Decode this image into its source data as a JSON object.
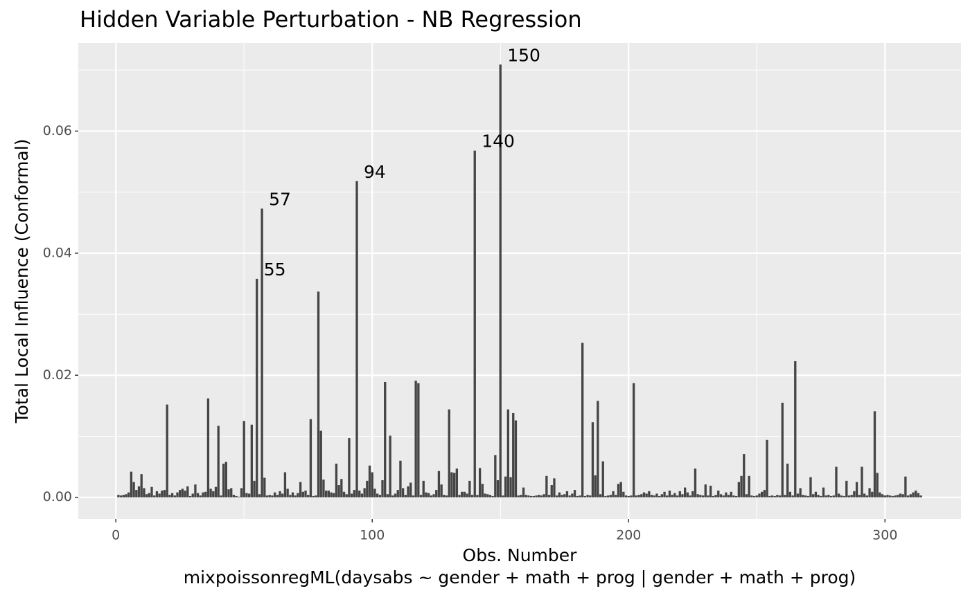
{
  "chart_data": {
    "type": "bar",
    "title": "Hidden Variable Perturbation - NB Regression",
    "xlabel": "Obs. Number",
    "caption": "mixpoissonregML(daysabs ~ gender + math + prog | gender + math + prog)",
    "ylabel": "Total Local Influence (Conformal)",
    "color": "#454545",
    "grid": true,
    "xlim": [
      -14.65,
      329.65
    ],
    "xticks": [
      0,
      100,
      200,
      300
    ],
    "xminor": [
      50,
      150,
      250
    ],
    "ylim": [
      -0.00355,
      0.07445
    ],
    "yticks": [
      {
        "value": 0,
        "label": "0.00"
      },
      {
        "value": 0.02,
        "label": "0.02"
      },
      {
        "value": 0.04,
        "label": "0.04"
      },
      {
        "value": 0.06,
        "label": "0.06"
      }
    ],
    "yminor": [
      0.01,
      0.03,
      0.05,
      0.07
    ],
    "annotations": [
      {
        "label": "55",
        "x": 55
      },
      {
        "label": "57",
        "x": 57
      },
      {
        "label": "94",
        "x": 94
      },
      {
        "label": "140",
        "x": 140
      },
      {
        "label": "150",
        "x": 150
      }
    ],
    "x": [
      1,
      2,
      3,
      4,
      5,
      6,
      7,
      8,
      9,
      10,
      11,
      12,
      13,
      14,
      15,
      16,
      17,
      18,
      19,
      20,
      21,
      22,
      23,
      24,
      25,
      26,
      27,
      28,
      29,
      30,
      31,
      32,
      33,
      34,
      35,
      36,
      37,
      38,
      39,
      40,
      41,
      42,
      43,
      44,
      45,
      46,
      47,
      48,
      49,
      50,
      51,
      52,
      53,
      54,
      55,
      56,
      57,
      58,
      59,
      60,
      61,
      62,
      63,
      64,
      65,
      66,
      67,
      68,
      69,
      70,
      71,
      72,
      73,
      74,
      75,
      76,
      77,
      78,
      79,
      80,
      81,
      82,
      83,
      84,
      85,
      86,
      87,
      88,
      89,
      90,
      91,
      92,
      93,
      94,
      95,
      96,
      97,
      98,
      99,
      100,
      101,
      102,
      103,
      104,
      105,
      106,
      107,
      108,
      109,
      110,
      111,
      112,
      113,
      114,
      115,
      116,
      117,
      118,
      119,
      120,
      121,
      122,
      123,
      124,
      125,
      126,
      127,
      128,
      129,
      130,
      131,
      132,
      133,
      134,
      135,
      136,
      137,
      138,
      139,
      140,
      141,
      142,
      143,
      144,
      145,
      146,
      147,
      148,
      149,
      150,
      151,
      152,
      153,
      154,
      155,
      156,
      157,
      158,
      159,
      160,
      161,
      162,
      163,
      164,
      165,
      166,
      167,
      168,
      169,
      170,
      171,
      172,
      173,
      174,
      175,
      176,
      177,
      178,
      179,
      180,
      181,
      182,
      183,
      184,
      185,
      186,
      187,
      188,
      189,
      190,
      191,
      192,
      193,
      194,
      195,
      196,
      197,
      198,
      199,
      200,
      201,
      202,
      203,
      204,
      205,
      206,
      207,
      208,
      209,
      210,
      211,
      212,
      213,
      214,
      215,
      216,
      217,
      218,
      219,
      220,
      221,
      222,
      223,
      224,
      225,
      226,
      227,
      228,
      229,
      230,
      231,
      232,
      233,
      234,
      235,
      236,
      237,
      238,
      239,
      240,
      241,
      242,
      243,
      244,
      245,
      246,
      247,
      248,
      249,
      250,
      251,
      252,
      253,
      254,
      255,
      256,
      257,
      258,
      259,
      260,
      261,
      262,
      263,
      264,
      265,
      266,
      267,
      268,
      269,
      270,
      271,
      272,
      273,
      274,
      275,
      276,
      277,
      278,
      279,
      280,
      281,
      282,
      283,
      284,
      285,
      286,
      287,
      288,
      289,
      290,
      291,
      292,
      293,
      294,
      295,
      296,
      297,
      298,
      299,
      300,
      301,
      302,
      303,
      304,
      305,
      306,
      307,
      308,
      309,
      310,
      311,
      312,
      313,
      314
    ],
    "values": [
      0.0004,
      0.0003,
      0.0004,
      0.0005,
      0.0008,
      0.0042,
      0.0025,
      0.0012,
      0.0018,
      0.0038,
      0.0015,
      0.0005,
      0.0007,
      0.0017,
      0.0003,
      0.001,
      0.0006,
      0.0011,
      0.0012,
      0.0152,
      0.0004,
      0.0007,
      0.0003,
      0.0008,
      0.0012,
      0.0014,
      0.0011,
      0.0018,
      0.0002,
      0.0006,
      0.0021,
      0.0007,
      0.0003,
      0.0008,
      0.0009,
      0.0162,
      0.0014,
      0.001,
      0.0017,
      0.0117,
      0.0003,
      0.0055,
      0.0058,
      0.0013,
      0.0015,
      0.0004,
      0.0002,
      0.0001,
      0.0015,
      0.0125,
      0.0007,
      0.0006,
      0.0119,
      0.0027,
      0.0358,
      0.0005,
      0.0473,
      0.0032,
      0.0003,
      0.0004,
      0.0003,
      0.0008,
      0.0004,
      0.001,
      0.0006,
      0.0041,
      0.0014,
      0.0004,
      0.0008,
      0.0003,
      0.0007,
      0.0025,
      0.0009,
      0.0011,
      0.0004,
      0.0128,
      0.0002,
      0.0003,
      0.0337,
      0.0109,
      0.0029,
      0.0011,
      0.0011,
      0.0008,
      0.0007,
      0.0055,
      0.002,
      0.003,
      0.0009,
      0.0005,
      0.0097,
      0.0006,
      0.0012,
      0.0518,
      0.0011,
      0.0006,
      0.0015,
      0.0027,
      0.0052,
      0.0041,
      0.0014,
      0.0006,
      0.0004,
      0.0028,
      0.0189,
      0.0005,
      0.0101,
      0.0003,
      0.0006,
      0.0012,
      0.006,
      0.0015,
      0.0004,
      0.0018,
      0.0024,
      0.0003,
      0.0191,
      0.0187,
      0.0004,
      0.0027,
      0.0008,
      0.0007,
      0.0003,
      0.0005,
      0.0012,
      0.0043,
      0.0021,
      0.0004,
      0.0003,
      0.0144,
      0.0041,
      0.004,
      0.0047,
      0.0004,
      0.0009,
      0.0009,
      0.0006,
      0.0027,
      0.0004,
      0.0568,
      0.0004,
      0.0048,
      0.0022,
      0.0006,
      0.0005,
      0.0004,
      0.0002,
      0.0069,
      0.0028,
      0.0709,
      0.0003,
      0.0034,
      0.0144,
      0.0033,
      0.0138,
      0.0126,
      0.0003,
      0.0004,
      0.0016,
      0.0004,
      0.0003,
      0.0002,
      0.0002,
      0.0003,
      0.0004,
      0.0003,
      0.0005,
      0.0035,
      0.0004,
      0.002,
      0.0031,
      0.0003,
      0.0008,
      0.0004,
      0.0005,
      0.001,
      0.0003,
      0.0006,
      0.0012,
      0.0002,
      0.0003,
      0.0253,
      0.0002,
      0.0004,
      0.0003,
      0.0123,
      0.0036,
      0.0158,
      0.0005,
      0.0059,
      0.0002,
      0.0003,
      0.0004,
      0.001,
      0.0004,
      0.0022,
      0.0025,
      0.0009,
      0.0003,
      0.0002,
      0.0003,
      0.0187,
      0.0003,
      0.0004,
      0.0005,
      0.0008,
      0.0006,
      0.001,
      0.0004,
      0.0003,
      0.0006,
      0.0002,
      0.0005,
      0.0009,
      0.0003,
      0.0011,
      0.0004,
      0.0007,
      0.0003,
      0.001,
      0.0005,
      0.0016,
      0.0008,
      0.0003,
      0.001,
      0.0047,
      0.0005,
      0.0004,
      0.0003,
      0.0021,
      0.0003,
      0.0019,
      0.0002,
      0.0004,
      0.0011,
      0.0005,
      0.0003,
      0.0008,
      0.0004,
      0.0009,
      0.0003,
      0.0002,
      0.0025,
      0.0035,
      0.0071,
      0.0005,
      0.0035,
      0.0003,
      0.0002,
      0.0003,
      0.0006,
      0.0009,
      0.0012,
      0.0094,
      0.0002,
      0.0003,
      0.0002,
      0.0004,
      0.0003,
      0.0155,
      0.0004,
      0.0055,
      0.0009,
      0.0003,
      0.0223,
      0.0006,
      0.0015,
      0.0004,
      0.0003,
      0.0002,
      0.0033,
      0.0005,
      0.0009,
      0.0004,
      0.0002,
      0.0016,
      0.0003,
      0.0004,
      0.0002,
      0.0003,
      0.005,
      0.0006,
      0.0003,
      0.0002,
      0.0027,
      0.0003,
      0.0004,
      0.001,
      0.0025,
      0.0004,
      0.005,
      0.0006,
      0.0003,
      0.0015,
      0.0009,
      0.0141,
      0.004,
      0.0008,
      0.0005,
      0.0003,
      0.0004,
      0.0003,
      0.0002,
      0.0003,
      0.0004,
      0.0006,
      0.0005,
      0.0034,
      0.0003,
      0.0005,
      0.0008,
      0.0011,
      0.0007,
      0.0003
    ]
  }
}
